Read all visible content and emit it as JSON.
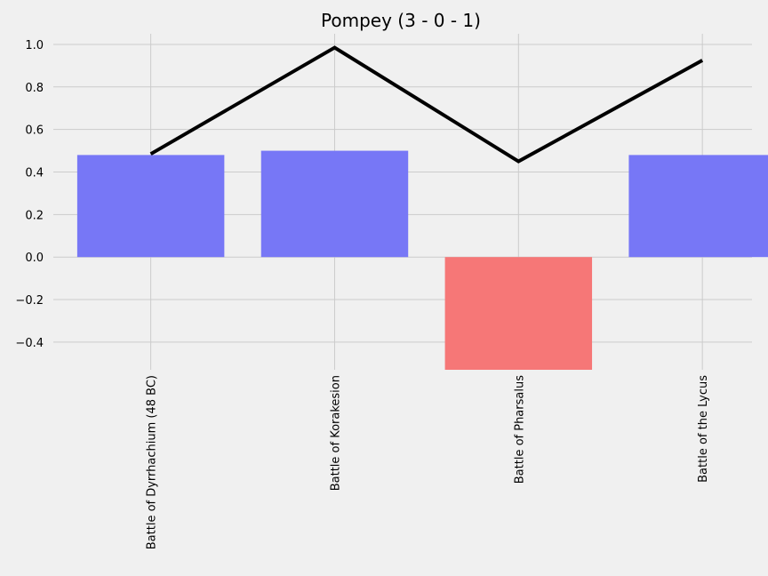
{
  "chart_data": {
    "type": "bar",
    "title": "Pompey (3 - 0 - 1)",
    "xlabel": "",
    "ylabel": "",
    "categories": [
      "Battle of Dyrrhachium (48 BC)",
      "Battle of Korakesion",
      "Battle of Pharsalus",
      "Battle of the Lycus"
    ],
    "bar_values": [
      0.48,
      0.5,
      -0.53,
      0.48
    ],
    "line_values": [
      0.485,
      0.985,
      0.45,
      0.925
    ],
    "ylim": [
      -0.53,
      1.05
    ],
    "yticks": [
      -0.4,
      -0.2,
      0.0,
      0.2,
      0.4,
      0.6,
      0.8,
      1.0
    ],
    "ytick_labels": [
      "−0.4",
      "−0.2",
      "0.0",
      "0.2",
      "0.4",
      "0.6",
      "0.8",
      "1.0"
    ],
    "grid": true,
    "colors": {
      "positive_bar": "#7777f6",
      "negative_bar": "#f67777",
      "line": "#000000",
      "background": "#f0f0f0"
    }
  }
}
